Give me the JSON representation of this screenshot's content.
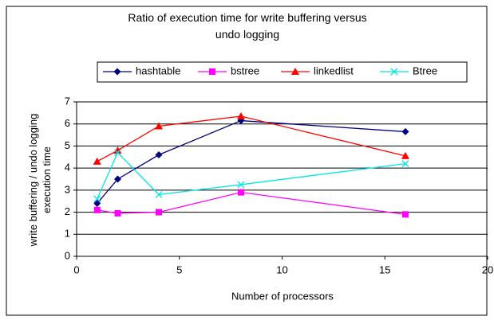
{
  "chart_data": {
    "type": "line",
    "title": "Ratio of execution time for write buffering versus undo logging",
    "xlabel": "Number of processors",
    "ylabel": "write buffering / undo logging execution time",
    "x": [
      1,
      2,
      4,
      8,
      16
    ],
    "series": [
      {
        "name": "hashtable",
        "color": "#000080",
        "marker": "diamond",
        "values": [
          2.4,
          3.5,
          4.6,
          6.15,
          5.65
        ]
      },
      {
        "name": "bstree",
        "color": "#ff00ff",
        "marker": "square",
        "values": [
          2.1,
          1.95,
          2.0,
          2.9,
          1.9
        ]
      },
      {
        "name": "linkedlist",
        "color": "#ff0000",
        "marker": "triangle",
        "values": [
          4.3,
          4.8,
          5.9,
          6.35,
          4.55
        ]
      },
      {
        "name": "Btree",
        "color": "#00e5e5",
        "marker": "x",
        "values": [
          2.6,
          4.7,
          2.8,
          3.25,
          4.2
        ]
      }
    ],
    "xlim": [
      0,
      20
    ],
    "xticks": [
      0,
      5,
      10,
      15,
      20
    ],
    "ylim": [
      0,
      7
    ],
    "yticks": [
      0,
      1,
      2,
      3,
      4,
      5,
      6,
      7
    ],
    "grid": true,
    "legend": "top"
  }
}
